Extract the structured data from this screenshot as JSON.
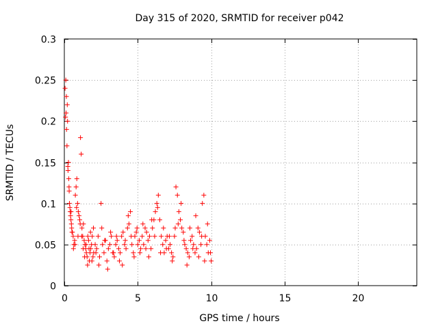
{
  "chart_data": {
    "type": "scatter",
    "title": "Day 315 of 2020, SRMTID for receiver p042",
    "xlabel": "GPS time / hours",
    "ylabel": "SRMTID / TECUs",
    "xlim": [
      0,
      24
    ],
    "ylim": [
      0,
      0.3
    ],
    "x_ticks": [
      0,
      5,
      10,
      15,
      20
    ],
    "x_tick_labels": [
      "0",
      "5",
      "10",
      "15",
      "20"
    ],
    "y_ticks": [
      0,
      0.05,
      0.1,
      0.15,
      0.2,
      0.25,
      0.3
    ],
    "y_tick_labels": [
      "0",
      "0.05",
      "0.1",
      "0.15",
      "0.2",
      "0.25",
      "0.3"
    ],
    "grid": true,
    "marker": "+",
    "series_color": "#ff0000",
    "series": [
      {
        "name": "SRMTID",
        "x": [
          0.05,
          0.1,
          0.12,
          0.15,
          0.18,
          0.2,
          0.22,
          0.25,
          0.28,
          0.3,
          0.32,
          0.35,
          0.38,
          0.4,
          0.42,
          0.45,
          0.48,
          0.5,
          0.55,
          0.6,
          0.65,
          0.7,
          0.75,
          0.8,
          0.85,
          0.9,
          0.95,
          1.0,
          1.05,
          1.1,
          1.15,
          1.2,
          1.25,
          1.3,
          1.35,
          1.4,
          1.45,
          1.5,
          1.55,
          1.6,
          1.65,
          1.7,
          1.75,
          1.8,
          1.85,
          1.9,
          1.95,
          2.0,
          2.1,
          2.2,
          2.3,
          2.4,
          2.5,
          2.6,
          2.7,
          2.8,
          2.9,
          3.0,
          3.1,
          3.2,
          3.3,
          3.4,
          3.5,
          3.6,
          3.7,
          3.8,
          3.9,
          4.0,
          4.1,
          4.2,
          4.3,
          4.4,
          4.5,
          4.6,
          4.7,
          4.8,
          4.9,
          5.0,
          5.1,
          5.2,
          5.3,
          5.4,
          5.5,
          5.6,
          5.7,
          5.8,
          5.9,
          6.0,
          6.1,
          6.2,
          6.3,
          6.4,
          6.5,
          6.6,
          6.7,
          6.8,
          6.9,
          7.0,
          7.1,
          7.2,
          7.3,
          7.4,
          7.5,
          7.6,
          7.7,
          7.8,
          7.9,
          8.0,
          8.1,
          8.2,
          8.3,
          8.4,
          8.5,
          8.6,
          8.7,
          8.8,
          8.9,
          9.0,
          9.1,
          9.2,
          9.3,
          9.4,
          9.5,
          9.6,
          9.7,
          9.8,
          9.9,
          10.0,
          0.08,
          0.14,
          0.24,
          0.33,
          0.46,
          0.52,
          0.62,
          0.73,
          0.83,
          0.93,
          1.08,
          1.18,
          1.28,
          1.38,
          1.48,
          1.58,
          1.68,
          1.78,
          1.88,
          1.98,
          2.15,
          2.35,
          2.55,
          2.75,
          2.95,
          3.15,
          3.35,
          3.55,
          3.75,
          3.95,
          4.15,
          4.35,
          4.55,
          4.75,
          4.95,
          5.15,
          5.35,
          5.55,
          5.75,
          5.95,
          6.15,
          6.35,
          6.55,
          6.75,
          6.95,
          7.15,
          7.35,
          7.55,
          7.75,
          7.95,
          8.15,
          8.35,
          8.55,
          8.75,
          8.95,
          9.15,
          9.35,
          9.55,
          9.75,
          9.95
        ],
        "y": [
          0.24,
          0.25,
          0.21,
          0.19,
          0.17,
          0.22,
          0.2,
          0.14,
          0.15,
          0.13,
          0.12,
          0.1,
          0.095,
          0.09,
          0.085,
          0.08,
          0.075,
          0.07,
          0.065,
          0.06,
          0.05,
          0.055,
          0.11,
          0.12,
          0.13,
          0.1,
          0.09,
          0.085,
          0.08,
          0.18,
          0.16,
          0.07,
          0.06,
          0.075,
          0.055,
          0.05,
          0.045,
          0.04,
          0.035,
          0.06,
          0.055,
          0.03,
          0.04,
          0.045,
          0.05,
          0.06,
          0.035,
          0.04,
          0.05,
          0.045,
          0.06,
          0.035,
          0.1,
          0.05,
          0.04,
          0.055,
          0.03,
          0.045,
          0.05,
          0.06,
          0.04,
          0.035,
          0.05,
          0.055,
          0.045,
          0.04,
          0.06,
          0.065,
          0.05,
          0.045,
          0.07,
          0.075,
          0.09,
          0.05,
          0.04,
          0.06,
          0.065,
          0.05,
          0.055,
          0.045,
          0.06,
          0.05,
          0.07,
          0.065,
          0.055,
          0.06,
          0.045,
          0.07,
          0.08,
          0.09,
          0.1,
          0.11,
          0.08,
          0.06,
          0.05,
          0.04,
          0.055,
          0.06,
          0.045,
          0.05,
          0.04,
          0.035,
          0.06,
          0.12,
          0.11,
          0.09,
          0.08,
          0.07,
          0.065,
          0.05,
          0.045,
          0.04,
          0.035,
          0.055,
          0.06,
          0.05,
          0.04,
          0.045,
          0.07,
          0.065,
          0.05,
          0.1,
          0.11,
          0.06,
          0.05,
          0.04,
          0.055,
          0.03,
          0.205,
          0.23,
          0.145,
          0.115,
          0.09,
          0.065,
          0.045,
          0.05,
          0.095,
          0.06,
          0.075,
          0.06,
          0.045,
          0.035,
          0.05,
          0.025,
          0.045,
          0.065,
          0.03,
          0.07,
          0.04,
          0.025,
          0.07,
          0.055,
          0.02,
          0.065,
          0.04,
          0.06,
          0.03,
          0.025,
          0.055,
          0.085,
          0.06,
          0.035,
          0.07,
          0.04,
          0.075,
          0.045,
          0.035,
          0.08,
          0.06,
          0.095,
          0.04,
          0.07,
          0.045,
          0.06,
          0.03,
          0.07,
          0.075,
          0.1,
          0.055,
          0.025,
          0.07,
          0.045,
          0.085,
          0.035,
          0.06,
          0.03,
          0.075,
          0.04
        ]
      }
    ]
  }
}
